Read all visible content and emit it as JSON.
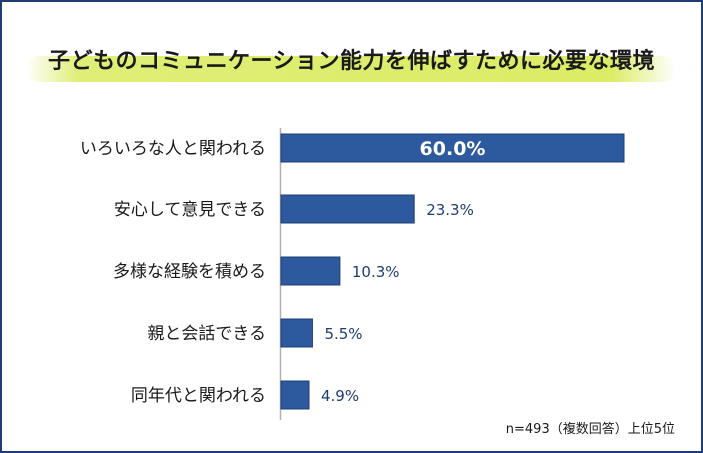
{
  "chart_data": {
    "type": "bar",
    "orientation": "horizontal",
    "title": "子どものコミュニケーション能力を伸ばすために必要な環境",
    "categories": [
      "いろいろな人と関われる",
      "安心して意見できる",
      "多様な経験を積める",
      "親と会話できる",
      "同年代と関われる"
    ],
    "values": [
      60.0,
      23.3,
      10.3,
      5.5,
      4.9
    ],
    "value_labels": [
      "60.0%",
      "23.3%",
      "10.3%",
      "5.5%",
      "4.9%"
    ],
    "unit": "%",
    "xlim": [
      0,
      60
    ],
    "grid": false,
    "bar_color": "#2d5a9e"
  },
  "note": "n=493（複数回答）上位5位"
}
